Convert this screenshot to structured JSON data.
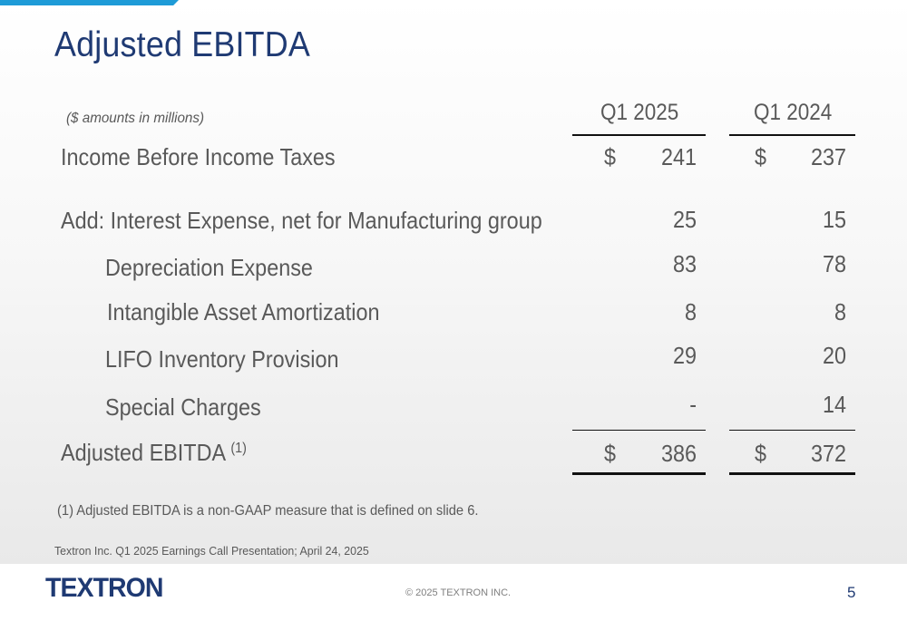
{
  "slide": {
    "title": "Adjusted EBITDA",
    "units_note": "($ amounts in millions)",
    "columns": [
      "Q1 2025",
      "Q1 2024"
    ],
    "rows": [
      {
        "label": "Income Before Income Taxes",
        "dollar": "$",
        "q1_2025": "241",
        "q1_2024": "237"
      },
      {
        "label": "Add: Interest Expense, net for Manufacturing group",
        "q1_2025": "25",
        "q1_2024": "15"
      },
      {
        "label": "Depreciation Expense",
        "q1_2025": "83",
        "q1_2024": "78"
      },
      {
        "label": "Intangible Asset Amortization",
        "q1_2025": "8",
        "q1_2024": "8"
      },
      {
        "label": "LIFO Inventory Provision",
        "q1_2025": "29",
        "q1_2024": "20"
      },
      {
        "label": "Special Charges",
        "q1_2025": "-",
        "q1_2024": "14"
      }
    ],
    "total": {
      "label": "Adjusted EBITDA",
      "footnote_ref": "(1)",
      "dollar": "$",
      "q1_2025": "386",
      "q1_2024": "372"
    },
    "footnote": "(1) Adjusted EBITDA is a non-GAAP measure that is defined on slide 6.",
    "source": "Textron Inc. Q1 2025 Earnings Call Presentation; April 24, 2025"
  },
  "footer": {
    "logo_text": "TEXTRON",
    "copyright": "© 2025 TEXTRON INC.",
    "page_number": "5"
  },
  "colors": {
    "title": "#1f3a73",
    "accent": "#1e9bd7",
    "text": "#595959"
  }
}
